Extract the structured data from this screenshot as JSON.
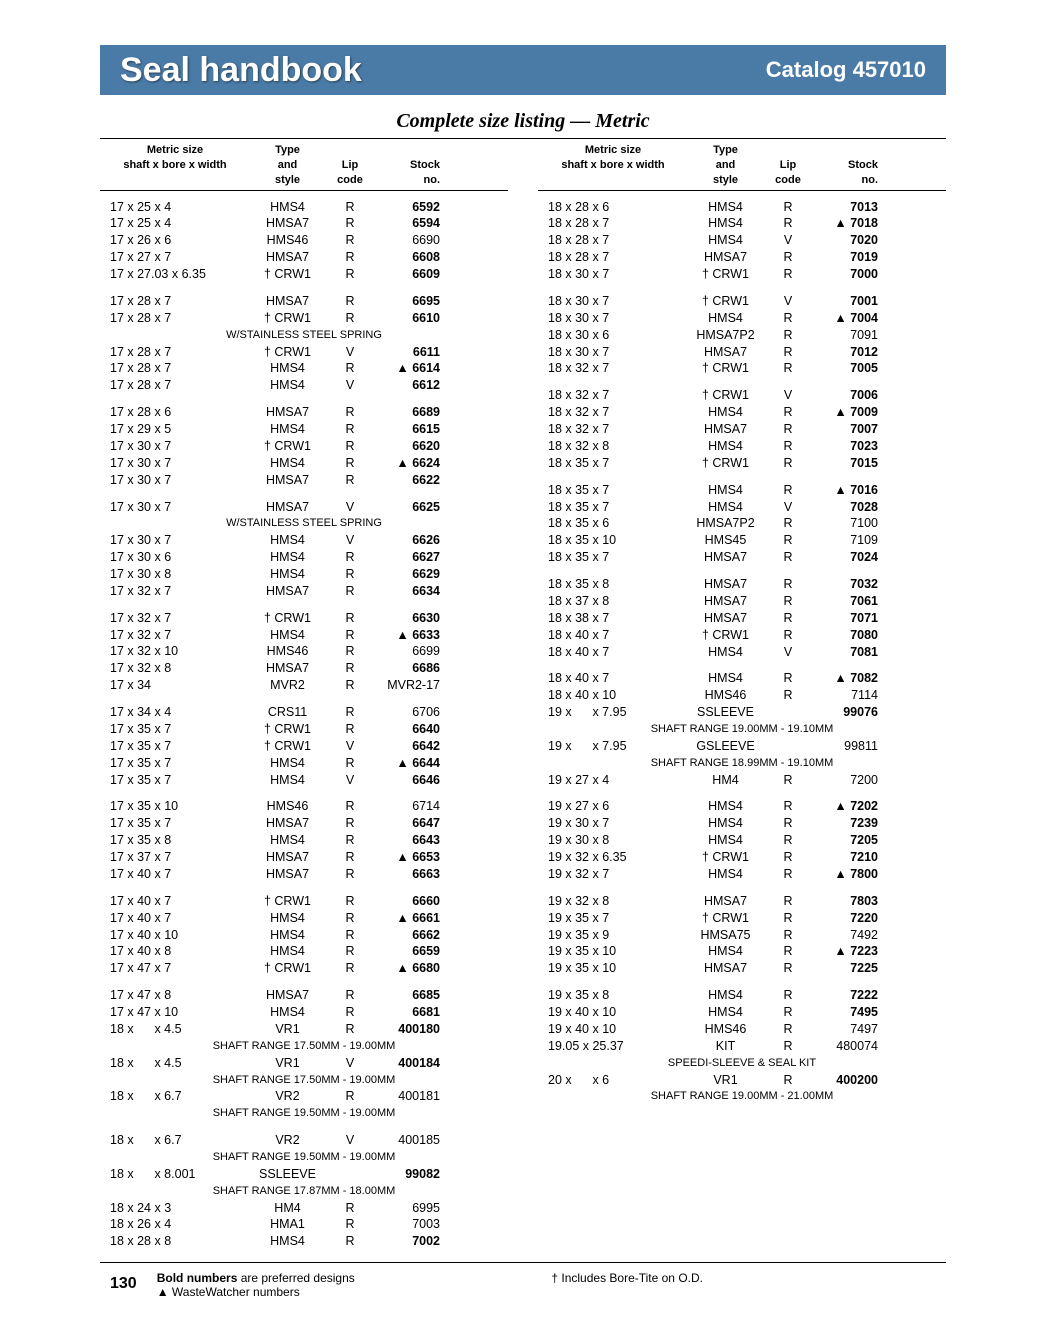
{
  "header": {
    "title": "Seal handbook",
    "catalog": "Catalog 457010"
  },
  "subtitle": "Complete size listing — Metric",
  "columns_header": {
    "h1a": "Metric size",
    "h1b": "shaft x bore x width",
    "h2a": "Type",
    "h2b": "and",
    "h2c": "style",
    "h3a": "Lip",
    "h3b": "code",
    "h4a": "Stock",
    "h4b": "no."
  },
  "left": [
    {
      "s": "17 x 25 x 4",
      "t": "HMS4",
      "l": "R",
      "n": "6592",
      "b": true
    },
    {
      "s": "17 x 25 x 4",
      "t": "HMSA7",
      "l": "R",
      "n": "6594",
      "b": true
    },
    {
      "s": "17 x 26 x 6",
      "t": "HMS46",
      "l": "R",
      "n": "6690"
    },
    {
      "s": "17 x 27 x 7",
      "t": "HMSA7",
      "l": "R",
      "n": "6608",
      "b": true
    },
    {
      "s": "17 x 27.03 x 6.35",
      "t": "† CRW1",
      "l": "R",
      "n": "6609",
      "b": true
    },
    {
      "gap": true
    },
    {
      "s": "17 x 28 x 7",
      "t": "HMSA7",
      "l": "R",
      "n": "6695",
      "b": true
    },
    {
      "s": "17 x 28 x 7",
      "t": "† CRW1",
      "l": "R",
      "n": "6610",
      "b": true
    },
    {
      "note": "W/STAINLESS STEEL SPRING"
    },
    {
      "s": "17 x 28 x 7",
      "t": "† CRW1",
      "l": "V",
      "n": "6611",
      "b": true
    },
    {
      "s": "17 x 28 x 7",
      "t": "HMS4",
      "l": "R",
      "n": "6614",
      "b": true,
      "tri": true
    },
    {
      "s": "17 x 28 x 7",
      "t": "HMS4",
      "l": "V",
      "n": "6612",
      "b": true
    },
    {
      "gap": true
    },
    {
      "s": "17 x 28 x 6",
      "t": "HMSA7",
      "l": "R",
      "n": "6689",
      "b": true
    },
    {
      "s": "17 x 29 x 5",
      "t": "HMS4",
      "l": "R",
      "n": "6615",
      "b": true
    },
    {
      "s": "17 x 30 x 7",
      "t": "† CRW1",
      "l": "R",
      "n": "6620",
      "b": true
    },
    {
      "s": "17 x 30 x 7",
      "t": "HMS4",
      "l": "R",
      "n": "6624",
      "b": true,
      "tri": true
    },
    {
      "s": "17 x 30 x 7",
      "t": "HMSA7",
      "l": "R",
      "n": "6622",
      "b": true
    },
    {
      "gap": true
    },
    {
      "s": "17 x 30 x 7",
      "t": "HMSA7",
      "l": "V",
      "n": "6625",
      "b": true
    },
    {
      "note": "W/STAINLESS STEEL SPRING"
    },
    {
      "s": "17 x 30 x 7",
      "t": "HMS4",
      "l": "V",
      "n": "6626",
      "b": true
    },
    {
      "s": "17 x 30 x 6",
      "t": "HMS4",
      "l": "R",
      "n": "6627",
      "b": true
    },
    {
      "s": "17 x 30 x 8",
      "t": "HMS4",
      "l": "R",
      "n": "6629",
      "b": true
    },
    {
      "s": "17 x 32 x 7",
      "t": "HMSA7",
      "l": "R",
      "n": "6634",
      "b": true
    },
    {
      "gap": true
    },
    {
      "s": "17 x 32 x 7",
      "t": "† CRW1",
      "l": "R",
      "n": "6630",
      "b": true
    },
    {
      "s": "17 x 32 x 7",
      "t": "HMS4",
      "l": "R",
      "n": "6633",
      "b": true,
      "tri": true
    },
    {
      "s": "17 x 32 x 10",
      "t": "HMS46",
      "l": "R",
      "n": "6699"
    },
    {
      "s": "17 x 32 x 8",
      "t": "HMSA7",
      "l": "R",
      "n": "6686",
      "b": true
    },
    {
      "s": "17 x 34",
      "t": "MVR2",
      "l": "R",
      "n": "MVR2-17"
    },
    {
      "gap": true
    },
    {
      "s": "17 x 34 x 4",
      "t": "CRS11",
      "l": "R",
      "n": "6706"
    },
    {
      "s": "17 x 35 x 7",
      "t": "† CRW1",
      "l": "R",
      "n": "6640",
      "b": true
    },
    {
      "s": "17 x 35 x 7",
      "t": "† CRW1",
      "l": "V",
      "n": "6642",
      "b": true
    },
    {
      "s": "17 x 35 x 7",
      "t": "HMS4",
      "l": "R",
      "n": "6644",
      "b": true,
      "tri": true
    },
    {
      "s": "17 x 35 x 7",
      "t": "HMS4",
      "l": "V",
      "n": "6646",
      "b": true
    },
    {
      "gap": true
    },
    {
      "s": "17 x 35 x 10",
      "t": "HMS46",
      "l": "R",
      "n": "6714"
    },
    {
      "s": "17 x 35 x 7",
      "t": "HMSA7",
      "l": "R",
      "n": "6647",
      "b": true
    },
    {
      "s": "17 x 35 x 8",
      "t": "HMS4",
      "l": "R",
      "n": "6643",
      "b": true
    },
    {
      "s": "17 x 37 x 7",
      "t": "HMSA7",
      "l": "R",
      "n": "6653",
      "b": true,
      "tri": true
    },
    {
      "s": "17 x 40 x 7",
      "t": "HMSA7",
      "l": "R",
      "n": "6663",
      "b": true
    },
    {
      "gap": true
    },
    {
      "s": "17 x 40 x 7",
      "t": "† CRW1",
      "l": "R",
      "n": "6660",
      "b": true
    },
    {
      "s": "17 x 40 x 7",
      "t": "HMS4",
      "l": "R",
      "n": "6661",
      "b": true,
      "tri": true
    },
    {
      "s": "17 x 40 x 10",
      "t": "HMS4",
      "l": "R",
      "n": "6662",
      "b": true
    },
    {
      "s": "17 x 40 x 8",
      "t": "HMS4",
      "l": "R",
      "n": "6659",
      "b": true
    },
    {
      "s": "17 x 47 x 7",
      "t": "† CRW1",
      "l": "R",
      "n": "6680",
      "b": true,
      "tri": true
    },
    {
      "gap": true
    },
    {
      "s": "17 x 47 x 8",
      "t": "HMSA7",
      "l": "R",
      "n": "6685",
      "b": true
    },
    {
      "s": "17 x 47 x 10",
      "t": "HMS4",
      "l": "R",
      "n": "6681",
      "b": true
    },
    {
      "s": "18 x      x 4.5",
      "t": "VR1",
      "l": "R",
      "n": "400180",
      "b": true
    },
    {
      "note": "SHAFT RANGE 17.50MM - 19.00MM"
    },
    {
      "s": "18 x      x 4.5",
      "t": "VR1",
      "l": "V",
      "n": "400184",
      "b": true
    },
    {
      "note": "SHAFT RANGE 17.50MM - 19.00MM"
    },
    {
      "s": "18 x      x 6.7",
      "t": "VR2",
      "l": "R",
      "n": "400181"
    },
    {
      "note": "SHAFT RANGE 19.50MM - 19.00MM"
    },
    {
      "gap": true
    },
    {
      "s": "18 x      x 6.7",
      "t": "VR2",
      "l": "V",
      "n": "400185"
    },
    {
      "note": "SHAFT RANGE 19.50MM - 19.00MM"
    },
    {
      "s": "18 x      x 8.001",
      "t": "SSLEEVE",
      "l": "",
      "n": "99082",
      "b": true
    },
    {
      "note": "SHAFT RANGE 17.87MM - 18.00MM"
    },
    {
      "s": "18 x 24 x 3",
      "t": "HM4",
      "l": "R",
      "n": "6995"
    },
    {
      "s": "18 x 26 x 4",
      "t": "HMA1",
      "l": "R",
      "n": "7003"
    },
    {
      "s": "18 x 28 x 8",
      "t": "HMS4",
      "l": "R",
      "n": "7002",
      "b": true
    }
  ],
  "right": [
    {
      "s": "18 x 28 x 6",
      "t": "HMS4",
      "l": "R",
      "n": "7013",
      "b": true
    },
    {
      "s": "18 x 28 x 7",
      "t": "HMS4",
      "l": "R",
      "n": "7018",
      "b": true,
      "tri": true
    },
    {
      "s": "18 x 28 x 7",
      "t": "HMS4",
      "l": "V",
      "n": "7020",
      "b": true
    },
    {
      "s": "18 x 28 x 7",
      "t": "HMSA7",
      "l": "R",
      "n": "7019",
      "b": true
    },
    {
      "s": "18 x 30 x 7",
      "t": "† CRW1",
      "l": "R",
      "n": "7000",
      "b": true
    },
    {
      "gap": true
    },
    {
      "s": "18 x 30 x 7",
      "t": "† CRW1",
      "l": "V",
      "n": "7001",
      "b": true
    },
    {
      "s": "18 x 30 x 7",
      "t": "HMS4",
      "l": "R",
      "n": "7004",
      "b": true,
      "tri": true
    },
    {
      "s": "18 x 30 x 6",
      "t": "HMSA7P2",
      "l": "R",
      "n": "7091"
    },
    {
      "s": "18 x 30 x 7",
      "t": "HMSA7",
      "l": "R",
      "n": "7012",
      "b": true
    },
    {
      "s": "18 x 32 x 7",
      "t": "† CRW1",
      "l": "R",
      "n": "7005",
      "b": true
    },
    {
      "gap": true
    },
    {
      "s": "18 x 32 x 7",
      "t": "† CRW1",
      "l": "V",
      "n": "7006",
      "b": true
    },
    {
      "s": "18 x 32 x 7",
      "t": "HMS4",
      "l": "R",
      "n": "7009",
      "b": true,
      "tri": true
    },
    {
      "s": "18 x 32 x 7",
      "t": "HMSA7",
      "l": "R",
      "n": "7007",
      "b": true
    },
    {
      "s": "18 x 32 x 8",
      "t": "HMS4",
      "l": "R",
      "n": "7023",
      "b": true
    },
    {
      "s": "18 x 35 x 7",
      "t": "† CRW1",
      "l": "R",
      "n": "7015",
      "b": true
    },
    {
      "gap": true
    },
    {
      "s": "18 x 35 x 7",
      "t": "HMS4",
      "l": "R",
      "n": "7016",
      "b": true,
      "tri": true
    },
    {
      "s": "18 x 35 x 7",
      "t": "HMS4",
      "l": "V",
      "n": "7028",
      "b": true
    },
    {
      "s": "18 x 35 x 6",
      "t": "HMSA7P2",
      "l": "R",
      "n": "7100"
    },
    {
      "s": "18 x 35 x 10",
      "t": "HMS45",
      "l": "R",
      "n": "7109"
    },
    {
      "s": "18 x 35 x 7",
      "t": "HMSA7",
      "l": "R",
      "n": "7024",
      "b": true
    },
    {
      "gap": true
    },
    {
      "s": "18 x 35 x 8",
      "t": "HMSA7",
      "l": "R",
      "n": "7032",
      "b": true
    },
    {
      "s": "18 x 37 x 8",
      "t": "HMSA7",
      "l": "R",
      "n": "7061",
      "b": true
    },
    {
      "s": "18 x 38 x 7",
      "t": "HMSA7",
      "l": "R",
      "n": "7071",
      "b": true
    },
    {
      "s": "18 x 40 x 7",
      "t": "† CRW1",
      "l": "R",
      "n": "7080",
      "b": true
    },
    {
      "s": "18 x 40 x 7",
      "t": "HMS4",
      "l": "V",
      "n": "7081",
      "b": true
    },
    {
      "gap": true
    },
    {
      "s": "18 x 40 x 7",
      "t": "HMS4",
      "l": "R",
      "n": "7082",
      "b": true,
      "tri": true
    },
    {
      "s": "18 x 40 x 10",
      "t": "HMS46",
      "l": "R",
      "n": "7114"
    },
    {
      "s": "19 x      x 7.95",
      "t": "SSLEEVE",
      "l": "",
      "n": "99076",
      "b": true
    },
    {
      "note": "SHAFT RANGE 19.00MM - 19.10MM"
    },
    {
      "s": "19 x      x 7.95",
      "t": "GSLEEVE",
      "l": "",
      "n": "99811"
    },
    {
      "note": "SHAFT RANGE 18.99MM - 19.10MM"
    },
    {
      "s": "19 x 27 x 4",
      "t": "HM4",
      "l": "R",
      "n": "7200"
    },
    {
      "gap": true
    },
    {
      "s": "19 x 27 x 6",
      "t": "HMS4",
      "l": "R",
      "n": "7202",
      "b": true,
      "tri": true
    },
    {
      "s": "19 x 30 x 7",
      "t": "HMS4",
      "l": "R",
      "n": "7239",
      "b": true
    },
    {
      "s": "19 x 30 x 8",
      "t": "HMS4",
      "l": "R",
      "n": "7205",
      "b": true
    },
    {
      "s": "19 x 32 x 6.35",
      "t": "† CRW1",
      "l": "R",
      "n": "7210",
      "b": true
    },
    {
      "s": "19 x 32 x 7",
      "t": "HMS4",
      "l": "R",
      "n": "7800",
      "b": true,
      "tri": true
    },
    {
      "gap": true
    },
    {
      "s": "19 x 32 x 8",
      "t": "HMSA7",
      "l": "R",
      "n": "7803",
      "b": true
    },
    {
      "s": "19 x 35 x 7",
      "t": "† CRW1",
      "l": "R",
      "n": "7220",
      "b": true
    },
    {
      "s": "19 x 35 x 9",
      "t": "HMSA75",
      "l": "R",
      "n": "7492"
    },
    {
      "s": "19 x 35 x 10",
      "t": "HMS4",
      "l": "R",
      "n": "7223",
      "b": true,
      "tri": true
    },
    {
      "s": "19 x 35 x 10",
      "t": "HMSA7",
      "l": "R",
      "n": "7225",
      "b": true
    },
    {
      "gap": true
    },
    {
      "s": "19 x 35 x 8",
      "t": "HMS4",
      "l": "R",
      "n": "7222",
      "b": true
    },
    {
      "s": "19 x 40 x 10",
      "t": "HMS4",
      "l": "R",
      "n": "7495",
      "b": true
    },
    {
      "s": "19 x 40 x 10",
      "t": "HMS46",
      "l": "R",
      "n": "7497"
    },
    {
      "s": "19.05 x 25.37",
      "t": "KIT",
      "l": "R",
      "n": "480074"
    },
    {
      "note": "SPEEDI-SLEEVE & SEAL KIT"
    },
    {
      "s": "20 x      x 6",
      "t": "VR1",
      "l": "R",
      "n": "400200",
      "b": true
    },
    {
      "note": "SHAFT RANGE 19.00MM - 21.00MM"
    }
  ],
  "footer": {
    "page": "130",
    "bold_note_strong": "Bold numbers",
    "bold_note_rest": " are preferred designs",
    "waste": "▲ WasteWatcher numbers",
    "bore": "† Includes Bore-Tite on O.D."
  }
}
